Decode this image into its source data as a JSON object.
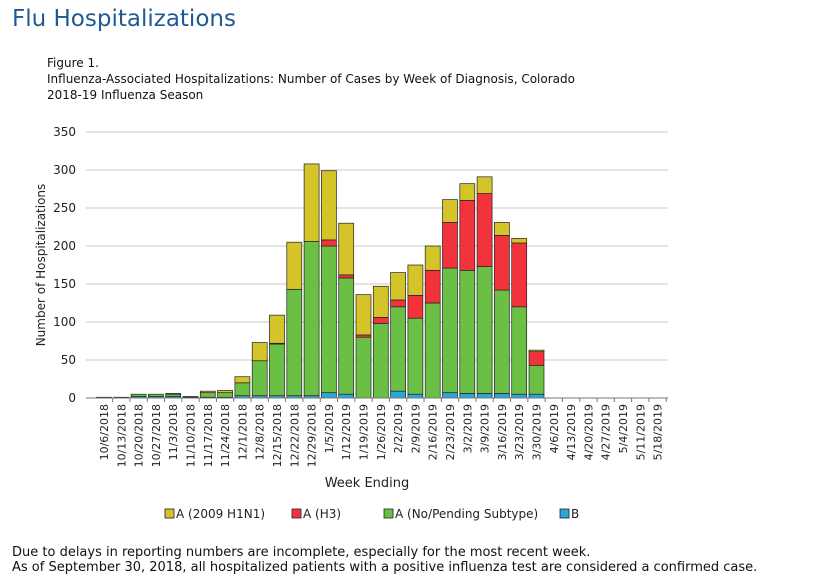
{
  "page": {
    "title": "Flu Hospitalizations"
  },
  "figure": {
    "label": "Figure 1.",
    "title_line1": "Influenza-Associated Hospitalizations: Number of  Cases by Week of Diagnosis, Colorado",
    "title_line2": "2018-19  Influenza Season"
  },
  "colors": {
    "h1n1": "#d4c42a",
    "h3": "#f2333c",
    "no_subtype": "#6cbf45",
    "b": "#29a8d8",
    "grid": "#c8c8c8"
  },
  "chart_data": {
    "type": "bar",
    "stacked": true,
    "title": "Influenza-Associated Hospitalizations: Number of  Cases by Week of Diagnosis, Colorado 2018-19  Influenza Season",
    "xlabel": "Week Ending",
    "ylabel": "Number of Hospitalizations",
    "ylim": [
      0,
      350
    ],
    "yticks": [
      0,
      50,
      100,
      150,
      200,
      250,
      300,
      350
    ],
    "grid": true,
    "legend_position": "bottom",
    "categories": [
      "10/6/2018",
      "10/13/2018",
      "10/20/2018",
      "10/27/2018",
      "11/3/2018",
      "11/10/2018",
      "11/17/2018",
      "11/24/2018",
      "12/1/2018",
      "12/8/2018",
      "12/15/2018",
      "12/22/2018",
      "12/29/2018",
      "1/5/2019",
      "1/12/2019",
      "1/19/2019",
      "1/26/2019",
      "2/2/2019",
      "2/9/2019",
      "2/16/2019",
      "2/23/2019",
      "3/2/2019",
      "3/9/2019",
      "3/16/2019",
      "3/23/2019",
      "3/30/2019",
      "4/6/2019",
      "4/13/2019",
      "4/20/2019",
      "4/27/2019",
      "5/4/2019",
      "5/11/2019",
      "5/18/2019"
    ],
    "series": [
      {
        "name": "B",
        "color_key": "b",
        "values": [
          0,
          0,
          2,
          2,
          2,
          1,
          1,
          1,
          3,
          3,
          3,
          3,
          3,
          7,
          5,
          0,
          0,
          9,
          5,
          0,
          7,
          6,
          6,
          6,
          5,
          5,
          0,
          0,
          0,
          0,
          0,
          0,
          0
        ]
      },
      {
        "name": "A (No/Pending Subtype)",
        "color_key": "no_subtype",
        "values": [
          1,
          1,
          3,
          3,
          3,
          1,
          6,
          6,
          17,
          46,
          68,
          140,
          203,
          193,
          153,
          80,
          98,
          111,
          100,
          125,
          164,
          162,
          167,
          136,
          115,
          38,
          0,
          0,
          0,
          0,
          0,
          0,
          0
        ]
      },
      {
        "name": "A (H3)",
        "color_key": "h3",
        "values": [
          0,
          0,
          0,
          0,
          0,
          0,
          0,
          0,
          0,
          0,
          1,
          0,
          0,
          8,
          4,
          3,
          8,
          9,
          30,
          43,
          60,
          92,
          96,
          72,
          84,
          18,
          0,
          0,
          0,
          0,
          0,
          0,
          0
        ]
      },
      {
        "name": "A (2009 H1N1)",
        "color_key": "h1n1",
        "values": [
          0,
          0,
          0,
          0,
          1,
          0,
          2,
          3,
          8,
          24,
          37,
          62,
          102,
          91,
          68,
          53,
          41,
          36,
          40,
          32,
          30,
          22,
          22,
          17,
          6,
          2,
          0,
          0,
          0,
          0,
          0,
          0,
          0
        ]
      }
    ],
    "legend": [
      "A (2009 H1N1)",
      "A (H3)",
      "A (No/Pending Subtype)",
      "B"
    ]
  },
  "footnotes": {
    "line1": "Due to delays in reporting numbers are incomplete, especially for the most recent week.",
    "line2": "As of September 30, 2018, all hospitalized patients with a positive influenza test are considered a confirmed case."
  }
}
